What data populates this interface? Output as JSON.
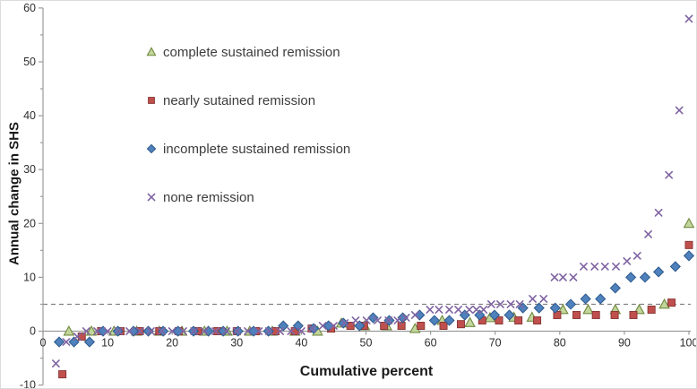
{
  "chart_data": {
    "type": "scatter",
    "title": "",
    "xlabel": "Cumulative percent",
    "ylabel": "Annual change in SHS",
    "xlim": [
      0,
      100
    ],
    "ylim": [
      -10,
      60
    ],
    "x_ticks": [
      0,
      10,
      20,
      30,
      40,
      50,
      60,
      70,
      80,
      90,
      100
    ],
    "y_ticks": [
      -10,
      0,
      10,
      20,
      30,
      40,
      50,
      60
    ],
    "y_minor_tick_step": 5,
    "grid": "off",
    "legend_position": "inside-upper-left",
    "axis_color": "#9b9b9b",
    "tick_label_color": "#2e2e2e",
    "reference_line": {
      "y": 5,
      "style": "dashed",
      "color": "#7f7f7f"
    },
    "series": [
      {
        "name": "complete sustained remission",
        "marker": "triangle",
        "color": "#9bbb59",
        "fill": "#c2d69b",
        "edge": "#71893f",
        "points": [
          [
            4,
            0
          ],
          [
            7.5,
            0
          ],
          [
            11,
            0
          ],
          [
            14.5,
            0
          ],
          [
            18,
            0
          ],
          [
            21.5,
            0
          ],
          [
            25,
            0
          ],
          [
            28.5,
            0
          ],
          [
            32,
            0
          ],
          [
            35.5,
            0
          ],
          [
            39,
            0
          ],
          [
            42.5,
            0
          ],
          [
            46.2,
            1.5
          ],
          [
            49.8,
            1
          ],
          [
            53.2,
            1
          ],
          [
            57.6,
            0.5
          ],
          [
            61.8,
            2
          ],
          [
            66.1,
            1.6
          ],
          [
            69.2,
            2.5
          ],
          [
            72.9,
            2.6
          ],
          [
            75.7,
            2.6
          ],
          [
            80.5,
            4
          ],
          [
            84.4,
            4
          ],
          [
            88.6,
            4
          ],
          [
            92.3,
            4
          ],
          [
            96.2,
            5
          ],
          [
            100,
            20
          ]
        ]
      },
      {
        "name": "nearly sutained remission",
        "marker": "square",
        "color": "#c0504d",
        "fill": "#c0504d",
        "edge": "#8c3836",
        "points": [
          [
            3,
            -8
          ],
          [
            6,
            -1
          ],
          [
            9,
            0
          ],
          [
            12,
            0
          ],
          [
            15,
            0
          ],
          [
            18,
            0
          ],
          [
            21,
            0
          ],
          [
            24,
            0
          ],
          [
            27,
            0
          ],
          [
            30,
            0
          ],
          [
            33,
            0
          ],
          [
            36,
            0
          ],
          [
            39,
            0
          ],
          [
            41.6,
            0.5
          ],
          [
            44.6,
            0.5
          ],
          [
            47.6,
            1
          ],
          [
            49.7,
            1
          ],
          [
            52.8,
            1
          ],
          [
            55.5,
            1
          ],
          [
            58.5,
            1
          ],
          [
            62,
            1
          ],
          [
            64.7,
            1.3
          ],
          [
            68,
            2
          ],
          [
            70.6,
            2
          ],
          [
            73.6,
            2
          ],
          [
            76.5,
            2
          ],
          [
            79.6,
            3
          ],
          [
            82.6,
            3
          ],
          [
            85.6,
            3
          ],
          [
            88.5,
            3
          ],
          [
            91.4,
            3
          ],
          [
            94.2,
            4
          ],
          [
            97.3,
            5.3
          ],
          [
            100,
            16
          ]
        ]
      },
      {
        "name": "incomplete sustained remission",
        "marker": "diamond",
        "color": "#4f81bd",
        "fill": "#4f81bd",
        "edge": "#2f5a8b",
        "points": [
          [
            2.5,
            -2
          ],
          [
            4.8,
            -2
          ],
          [
            7.2,
            -2
          ],
          [
            9.3,
            0
          ],
          [
            11.6,
            0
          ],
          [
            14,
            0
          ],
          [
            16.3,
            0
          ],
          [
            18.6,
            0
          ],
          [
            20.9,
            0
          ],
          [
            23.3,
            0
          ],
          [
            25.6,
            0
          ],
          [
            27.9,
            0
          ],
          [
            30.2,
            0
          ],
          [
            32.6,
            0
          ],
          [
            34.9,
            0
          ],
          [
            37.2,
            1
          ],
          [
            39.5,
            1
          ],
          [
            41.9,
            0.5
          ],
          [
            44.2,
            1
          ],
          [
            46.5,
            1.5
          ],
          [
            49,
            1
          ],
          [
            51.1,
            2.5
          ],
          [
            53.6,
            2
          ],
          [
            55.7,
            2.5
          ],
          [
            58.3,
            3
          ],
          [
            60.6,
            2
          ],
          [
            62.9,
            2
          ],
          [
            65.3,
            3
          ],
          [
            67.6,
            3
          ],
          [
            69.9,
            3
          ],
          [
            72.2,
            3
          ],
          [
            74.3,
            4.3
          ],
          [
            76.8,
            4.3
          ],
          [
            79.3,
            4.3
          ],
          [
            81.7,
            5
          ],
          [
            84,
            6
          ],
          [
            86.3,
            6
          ],
          [
            88.6,
            8
          ],
          [
            91,
            10
          ],
          [
            93.2,
            10
          ],
          [
            95.3,
            11
          ],
          [
            97.9,
            12
          ],
          [
            100,
            14
          ]
        ]
      },
      {
        "name": "none remission",
        "marker": "x",
        "color": "#8064a2",
        "fill": "none",
        "edge": "#8064a2",
        "points": [
          [
            2,
            -6
          ],
          [
            3.6,
            -2
          ],
          [
            5.3,
            -1
          ],
          [
            6.7,
            0
          ],
          [
            8.4,
            0
          ],
          [
            10,
            0
          ],
          [
            11.7,
            0
          ],
          [
            13.4,
            0
          ],
          [
            15,
            0
          ],
          [
            16.7,
            0
          ],
          [
            18.4,
            0
          ],
          [
            20,
            0
          ],
          [
            21.7,
            0
          ],
          [
            23.4,
            0
          ],
          [
            25,
            0
          ],
          [
            26.7,
            0
          ],
          [
            28.4,
            0
          ],
          [
            30,
            0
          ],
          [
            31.7,
            0
          ],
          [
            33.4,
            0
          ],
          [
            35,
            0
          ],
          [
            36.7,
            0
          ],
          [
            38.4,
            0
          ],
          [
            40,
            0
          ],
          [
            41.7,
            0.5
          ],
          [
            43.3,
            1
          ],
          [
            45,
            1
          ],
          [
            46.7,
            1.5
          ],
          [
            48.4,
            2
          ],
          [
            50.1,
            2
          ],
          [
            51.8,
            2
          ],
          [
            53.5,
            2
          ],
          [
            54.9,
            2
          ],
          [
            56.2,
            2.5
          ],
          [
            57.6,
            3
          ],
          [
            59.9,
            4
          ],
          [
            61.3,
            4
          ],
          [
            62.9,
            4
          ],
          [
            64.3,
            4
          ],
          [
            66,
            4
          ],
          [
            67.1,
            4
          ],
          [
            68.2,
            4
          ],
          [
            69.4,
            5
          ],
          [
            70.8,
            5
          ],
          [
            72.4,
            5
          ],
          [
            73.8,
            5
          ],
          [
            75.8,
            6
          ],
          [
            77.5,
            6
          ],
          [
            79.2,
            10
          ],
          [
            80.5,
            10
          ],
          [
            82.1,
            10
          ],
          [
            83.7,
            12
          ],
          [
            85.4,
            12
          ],
          [
            87,
            12
          ],
          [
            88.7,
            12
          ],
          [
            90.4,
            13
          ],
          [
            92,
            14
          ],
          [
            93.7,
            18
          ],
          [
            95.3,
            22
          ],
          [
            96.9,
            29
          ],
          [
            98.5,
            41
          ],
          [
            100,
            58
          ]
        ]
      }
    ]
  }
}
